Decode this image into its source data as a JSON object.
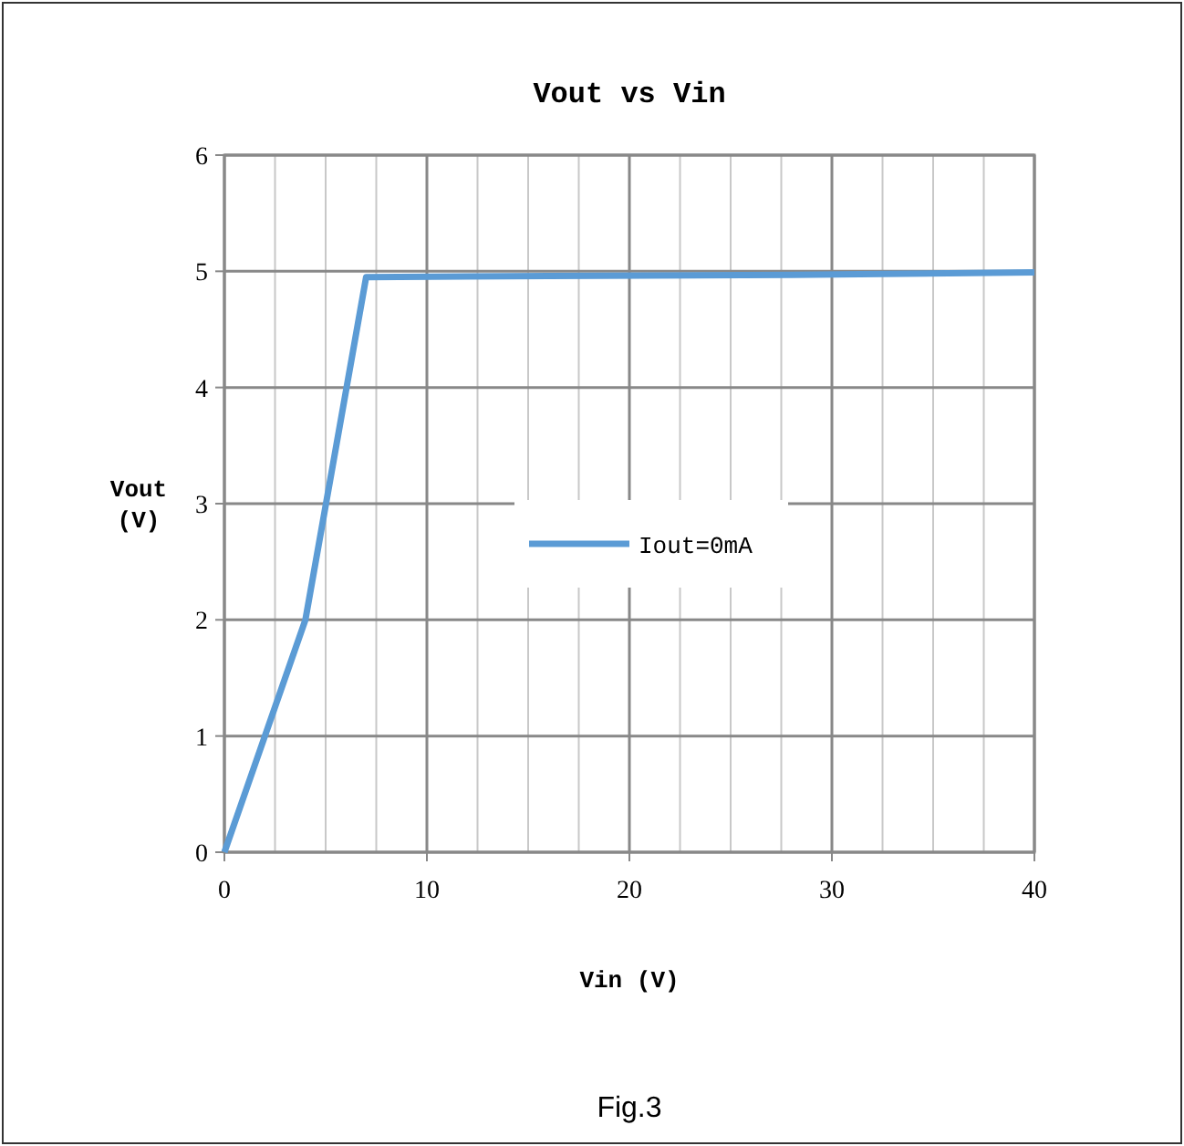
{
  "chart_data": {
    "type": "line",
    "title": "Vout vs Vin",
    "xlabel": "Vin (V)",
    "ylabel": "Vout\n(V)",
    "x": [
      0,
      4,
      7,
      16,
      28,
      40
    ],
    "series": [
      {
        "name": "Iout=0mA",
        "color": "#5b9bd5",
        "values": [
          0,
          2,
          4.95,
          4.96,
          4.97,
          4.99
        ]
      }
    ],
    "xlim": [
      0,
      40
    ],
    "xticks": [
      0,
      {
        "value": 2.5,
        "label": null
      },
      {
        "value": 5,
        "label": null
      },
      {
        "value": 7.5,
        "label": null
      },
      10,
      {
        "value": 12.5,
        "label": null
      },
      {
        "value": 15,
        "label": null
      },
      {
        "value": 17.5,
        "label": null
      },
      20,
      {
        "value": 22.5,
        "label": null
      },
      {
        "value": 25,
        "label": null
      },
      {
        "value": 27.5,
        "label": null
      },
      30,
      {
        "value": 32.5,
        "label": null
      },
      {
        "value": 35,
        "label": null
      },
      {
        "value": 37.5,
        "label": null
      },
      40
    ],
    "ylim": [
      0,
      6
    ],
    "yticks": [
      0,
      1,
      2,
      3,
      4,
      5,
      6
    ],
    "grid": true,
    "legend": "center",
    "marker": "none",
    "line_style": "solid",
    "annotations": [
      "Fig.3"
    ]
  }
}
